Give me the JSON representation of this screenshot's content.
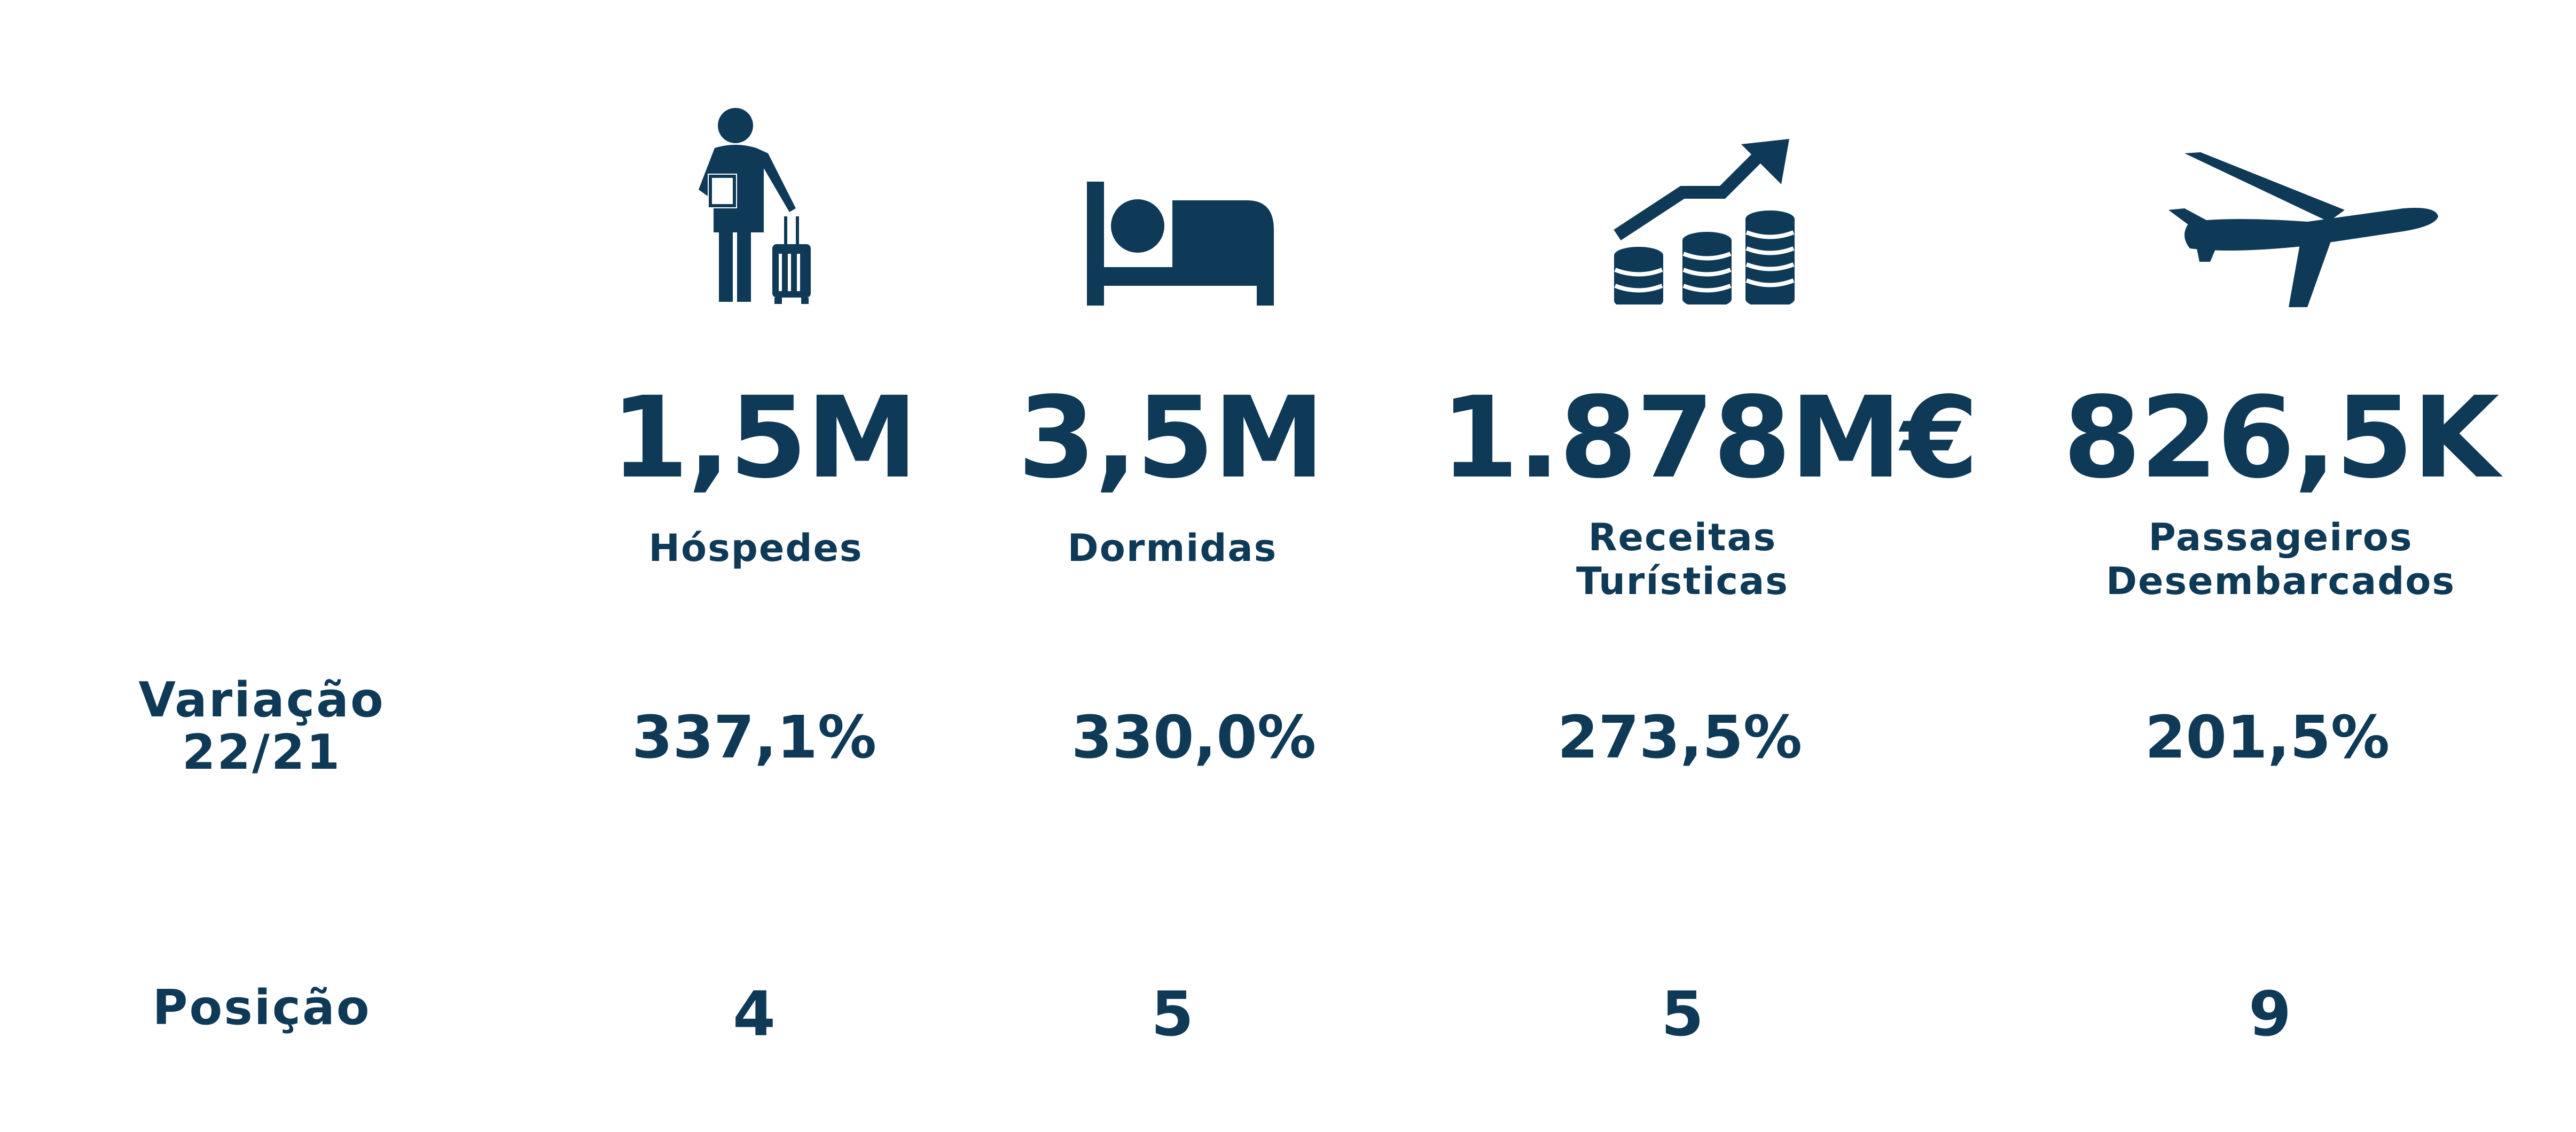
{
  "colors": {
    "primary": "#0f3a57",
    "background": "#ffffff"
  },
  "row_labels": {
    "variation_line1": "Variação",
    "variation_line2": "22/21",
    "position": "Posição"
  },
  "metrics": [
    {
      "icon": "traveler-with-luggage-icon",
      "value": "1,5M",
      "label_line1": "Hóspedes",
      "label_line2": "",
      "variation": "337,1%",
      "position": "4"
    },
    {
      "icon": "bed-icon",
      "value": "3,5M",
      "label_line1": "Dormidas",
      "label_line2": "",
      "variation": "330,0%",
      "position": "5"
    },
    {
      "icon": "coins-growth-icon",
      "value": "1.878M€",
      "label_line1": "Receitas",
      "label_line2": "Turísticas",
      "variation": "273,5%",
      "position": "5"
    },
    {
      "icon": "airplane-icon",
      "value": "826,5K",
      "label_line1": "Passageiros",
      "label_line2": "Desembarcados",
      "variation": "201,5%",
      "position": "9"
    }
  ]
}
